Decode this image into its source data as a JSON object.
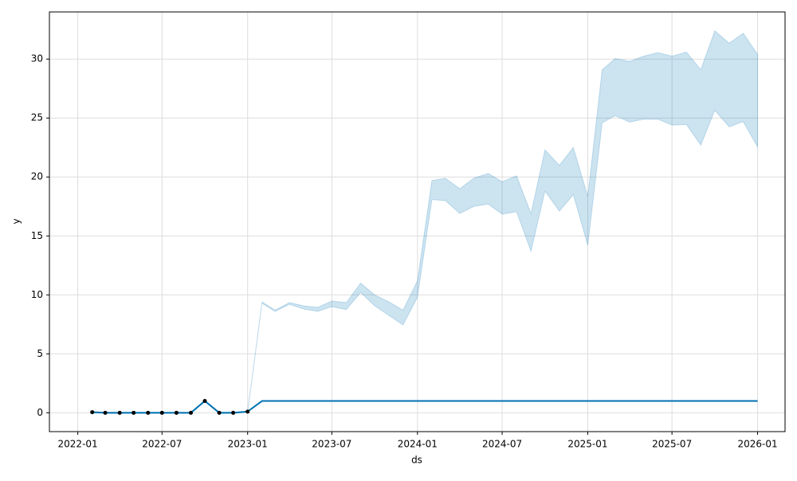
{
  "chart_data": {
    "type": "line",
    "xlabel": "ds",
    "ylabel": "y",
    "x": [
      "2022-02",
      "2022-03",
      "2022-04",
      "2022-05",
      "2022-06",
      "2022-07",
      "2022-08",
      "2022-09",
      "2022-10",
      "2022-11",
      "2022-12",
      "2023-01",
      "2023-02",
      "2023-03",
      "2023-04",
      "2023-05",
      "2023-06",
      "2023-07",
      "2023-08",
      "2023-09",
      "2023-10",
      "2023-11",
      "2023-12",
      "2024-01",
      "2024-02",
      "2024-03",
      "2024-04",
      "2024-05",
      "2024-06",
      "2024-07",
      "2024-08",
      "2024-09",
      "2024-10",
      "2024-11",
      "2024-12",
      "2025-01",
      "2025-02",
      "2025-03",
      "2025-04",
      "2025-05",
      "2025-06",
      "2025-07",
      "2025-08",
      "2025-09",
      "2025-10",
      "2025-11",
      "2025-12",
      "2026-01"
    ],
    "series": [
      {
        "color": "#0072B2",
        "values": [
          0.05,
          0,
          0,
          0,
          0,
          0,
          0,
          0,
          1,
          0,
          0,
          0.1,
          1,
          1,
          1,
          1,
          1,
          1,
          1,
          1,
          1,
          1,
          1,
          1,
          1,
          1,
          1,
          1,
          1,
          1,
          1,
          1,
          1,
          1,
          1,
          1,
          1,
          1,
          1,
          1,
          1,
          1,
          1,
          1,
          1,
          1,
          1,
          1
        ]
      }
    ],
    "band": {
      "color": "#0072B2",
      "lower": [
        0,
        -0.05,
        -0.05,
        -0.05,
        -0.05,
        -0.05,
        -0.05,
        -0.05,
        0.95,
        -0.05,
        -0.05,
        0.05,
        9.3,
        8.6,
        9.2,
        8.8,
        8.6,
        9.0,
        8.75,
        10.2,
        9.07,
        8.25,
        7.45,
        9.8,
        18.08,
        18.0,
        16.9,
        17.5,
        17.7,
        16.85,
        17.05,
        13.7,
        18.8,
        17.1,
        18.5,
        14.2,
        24.6,
        25.2,
        24.65,
        24.9,
        24.9,
        24.4,
        24.45,
        22.7,
        25.65,
        24.25,
        24.7,
        22.55
      ],
      "upper": [
        0.1,
        0.05,
        0.05,
        0.05,
        0.05,
        0.05,
        0.05,
        0.05,
        1.05,
        0.05,
        0.05,
        0.15,
        9.4,
        8.7,
        9.35,
        9.07,
        8.95,
        9.48,
        9.35,
        11.0,
        10.0,
        9.4,
        8.7,
        11.2,
        19.7,
        19.9,
        19.0,
        19.9,
        20.3,
        19.6,
        20.1,
        16.9,
        22.3,
        21.0,
        22.5,
        18.35,
        29.1,
        30.05,
        29.8,
        30.25,
        30.55,
        30.25,
        30.6,
        29.1,
        32.4,
        31.35,
        32.2,
        30.4
      ]
    },
    "points": {
      "color": "#000000",
      "x": [
        "2022-02",
        "2022-03",
        "2022-04",
        "2022-05",
        "2022-06",
        "2022-07",
        "2022-08",
        "2022-09",
        "2022-10",
        "2022-11",
        "2022-12",
        "2023-01"
      ],
      "values": [
        0.05,
        0,
        0,
        0,
        0,
        0,
        0,
        0,
        1,
        0,
        0,
        0.1
      ]
    },
    "xlim": [
      "2021-11",
      "2026-03"
    ],
    "xticks": [
      "2022-01",
      "2022-07",
      "2023-01",
      "2023-07",
      "2024-01",
      "2024-07",
      "2025-01",
      "2025-07",
      "2026-01"
    ],
    "ylim": [
      -1.6,
      34
    ],
    "yticks": [
      0,
      5,
      10,
      15,
      20,
      25,
      30
    ],
    "grid": true
  }
}
